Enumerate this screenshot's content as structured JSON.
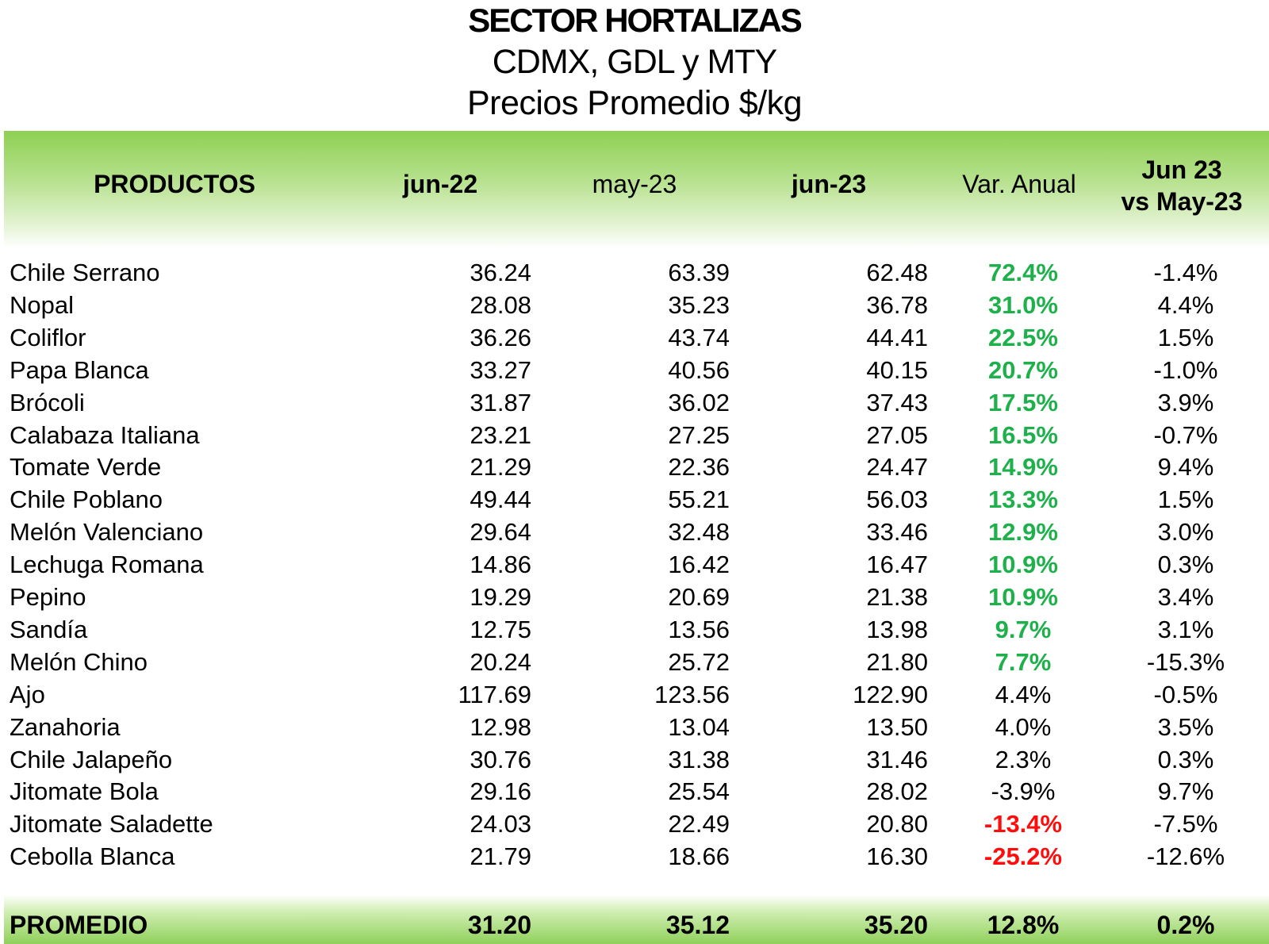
{
  "title": "SECTOR HORTALIZAS",
  "subtitle1": "CDMX, GDL y MTY",
  "subtitle2": "Precios Promedio $/kg",
  "headers": {
    "productos": "PRODUCTOS",
    "jun22": "jun-22",
    "may23": "may-23",
    "jun23": "jun-23",
    "var_anual": "Var. Anual",
    "mm_line1": "Jun 23",
    "mm_line2": "vs May-23"
  },
  "colors": {
    "positive": "#1db04b",
    "negative": "#ff0d0d",
    "header_green": "#8ed053"
  },
  "rows": [
    {
      "name": "Chile Serrano",
      "jun22": "36.24",
      "may23": "63.39",
      "jun23": "62.48",
      "var": "72.4%",
      "mm": "-1.4%",
      "var_style": "green"
    },
    {
      "name": "Nopal",
      "jun22": "28.08",
      "may23": "35.23",
      "jun23": "36.78",
      "var": "31.0%",
      "mm": "4.4%",
      "var_style": "green"
    },
    {
      "name": "Coliflor",
      "jun22": "36.26",
      "may23": "43.74",
      "jun23": "44.41",
      "var": "22.5%",
      "mm": "1.5%",
      "var_style": "green"
    },
    {
      "name": "Papa Blanca",
      "jun22": "33.27",
      "may23": "40.56",
      "jun23": "40.15",
      "var": "20.7%",
      "mm": "-1.0%",
      "var_style": "green"
    },
    {
      "name": "Brócoli",
      "jun22": "31.87",
      "may23": "36.02",
      "jun23": "37.43",
      "var": "17.5%",
      "mm": "3.9%",
      "var_style": "green"
    },
    {
      "name": "Calabaza Italiana",
      "jun22": "23.21",
      "may23": "27.25",
      "jun23": "27.05",
      "var": "16.5%",
      "mm": "-0.7%",
      "var_style": "green"
    },
    {
      "name": "Tomate Verde",
      "jun22": "21.29",
      "may23": "22.36",
      "jun23": "24.47",
      "var": "14.9%",
      "mm": "9.4%",
      "var_style": "green"
    },
    {
      "name": "Chile Poblano",
      "jun22": "49.44",
      "may23": "55.21",
      "jun23": "56.03",
      "var": "13.3%",
      "mm": "1.5%",
      "var_style": "green"
    },
    {
      "name": "Melón Valenciano",
      "jun22": "29.64",
      "may23": "32.48",
      "jun23": "33.46",
      "var": "12.9%",
      "mm": "3.0%",
      "var_style": "green"
    },
    {
      "name": "Lechuga Romana",
      "jun22": "14.86",
      "may23": "16.42",
      "jun23": "16.47",
      "var": "10.9%",
      "mm": "0.3%",
      "var_style": "green"
    },
    {
      "name": "Pepino",
      "jun22": "19.29",
      "may23": "20.69",
      "jun23": "21.38",
      "var": "10.9%",
      "mm": "3.4%",
      "var_style": "green"
    },
    {
      "name": "Sandía",
      "jun22": "12.75",
      "may23": "13.56",
      "jun23": "13.98",
      "var": "9.7%",
      "mm": "3.1%",
      "var_style": "green"
    },
    {
      "name": "Melón Chino",
      "jun22": "20.24",
      "may23": "25.72",
      "jun23": "21.80",
      "var": "7.7%",
      "mm": "-15.3%",
      "var_style": "green"
    },
    {
      "name": "Ajo",
      "jun22": "117.69",
      "may23": "123.56",
      "jun23": "122.90",
      "var": "4.4%",
      "mm": "-0.5%",
      "var_style": "plain"
    },
    {
      "name": "Zanahoria",
      "jun22": "12.98",
      "may23": "13.04",
      "jun23": "13.50",
      "var": "4.0%",
      "mm": "3.5%",
      "var_style": "plain"
    },
    {
      "name": "Chile Jalapeño",
      "jun22": "30.76",
      "may23": "31.38",
      "jun23": "31.46",
      "var": "2.3%",
      "mm": "0.3%",
      "var_style": "plain"
    },
    {
      "name": "Jitomate Bola",
      "jun22": "29.16",
      "may23": "25.54",
      "jun23": "28.02",
      "var": "-3.9%",
      "mm": "9.7%",
      "var_style": "plain"
    },
    {
      "name": "Jitomate Saladette",
      "jun22": "24.03",
      "may23": "22.49",
      "jun23": "20.80",
      "var": "-13.4%",
      "mm": "-7.5%",
      "var_style": "red"
    },
    {
      "name": "Cebolla Blanca",
      "jun22": "21.79",
      "may23": "18.66",
      "jun23": "16.30",
      "var": "-25.2%",
      "mm": "-12.6%",
      "var_style": "red"
    }
  ],
  "footer": {
    "label": "PROMEDIO",
    "jun22": "31.20",
    "may23": "35.12",
    "jun23": "35.20",
    "var": "12.8%",
    "mm": "0.2%"
  }
}
